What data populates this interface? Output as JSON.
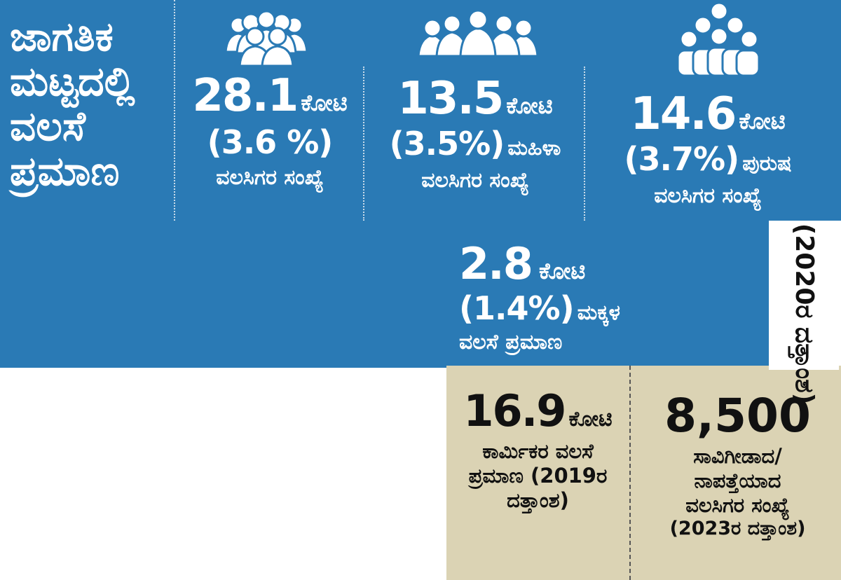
{
  "headline": [
    "ಜಾಗತಿಕ",
    "ಮಟ್ಟದಲ್ಲಿ",
    "ವಲಸೆ",
    "ಪ್ರಮಾಣ"
  ],
  "stats": [
    {
      "value": "28.1",
      "unit": "ಕೋಟಿ",
      "percent": "(3.6 %)",
      "qualifier": "",
      "description": "ವಲಸಿಗರ ಸಂಖ್ಯೆ",
      "icon": "crowd-icon"
    },
    {
      "value": "13.5",
      "unit": "ಕೋಟಿ",
      "percent": "(3.5%)",
      "qualifier": "ಮಹಿಳಾ",
      "description": "ವಲಸಿಗರ ಸಂಖ್ಯೆ",
      "icon": "women-group-icon"
    },
    {
      "value": "14.6",
      "unit": "ಕೋಟಿ",
      "percent": "(3.7%)",
      "qualifier": "ಪುರುಷ",
      "description": "ವಲಸಿಗರ ಸಂಖ್ಯೆ",
      "icon": "men-group-icon"
    }
  ],
  "children": {
    "value": "2.8",
    "unit": "ಕೋಟಿ",
    "percent": "(1.4%)",
    "qualifier": "ಮಕ್ಕಳ",
    "description": "ವಲಸೆ ಪ್ರಮಾಣ"
  },
  "data_year": "(2020ರ ದತ್ತಾಂಶ)",
  "workers": {
    "value": "16.9",
    "unit": "ಕೋಟಿ",
    "lines": [
      "ಕಾರ್ಮಿಕರ ವಲಸೆ",
      "ಪ್ರಮಾಣ (2019ರ",
      "ದತ್ತಾಂಶ)"
    ]
  },
  "dead_missing": {
    "value": "8,500",
    "lines": [
      "ಸಾವಿಗೀಡಾದ/",
      "ನಾಪತ್ತೆಯಾದ",
      "ವಲಸಿಗರ ಸಂಖ್ಯೆ",
      "(2023ರ ದತ್ತಾಂಶ)"
    ]
  },
  "colors": {
    "blue": "#2a7ab5",
    "tan": "#dbd3b4",
    "text_light": "#ffffff",
    "text_dark": "#111111"
  }
}
